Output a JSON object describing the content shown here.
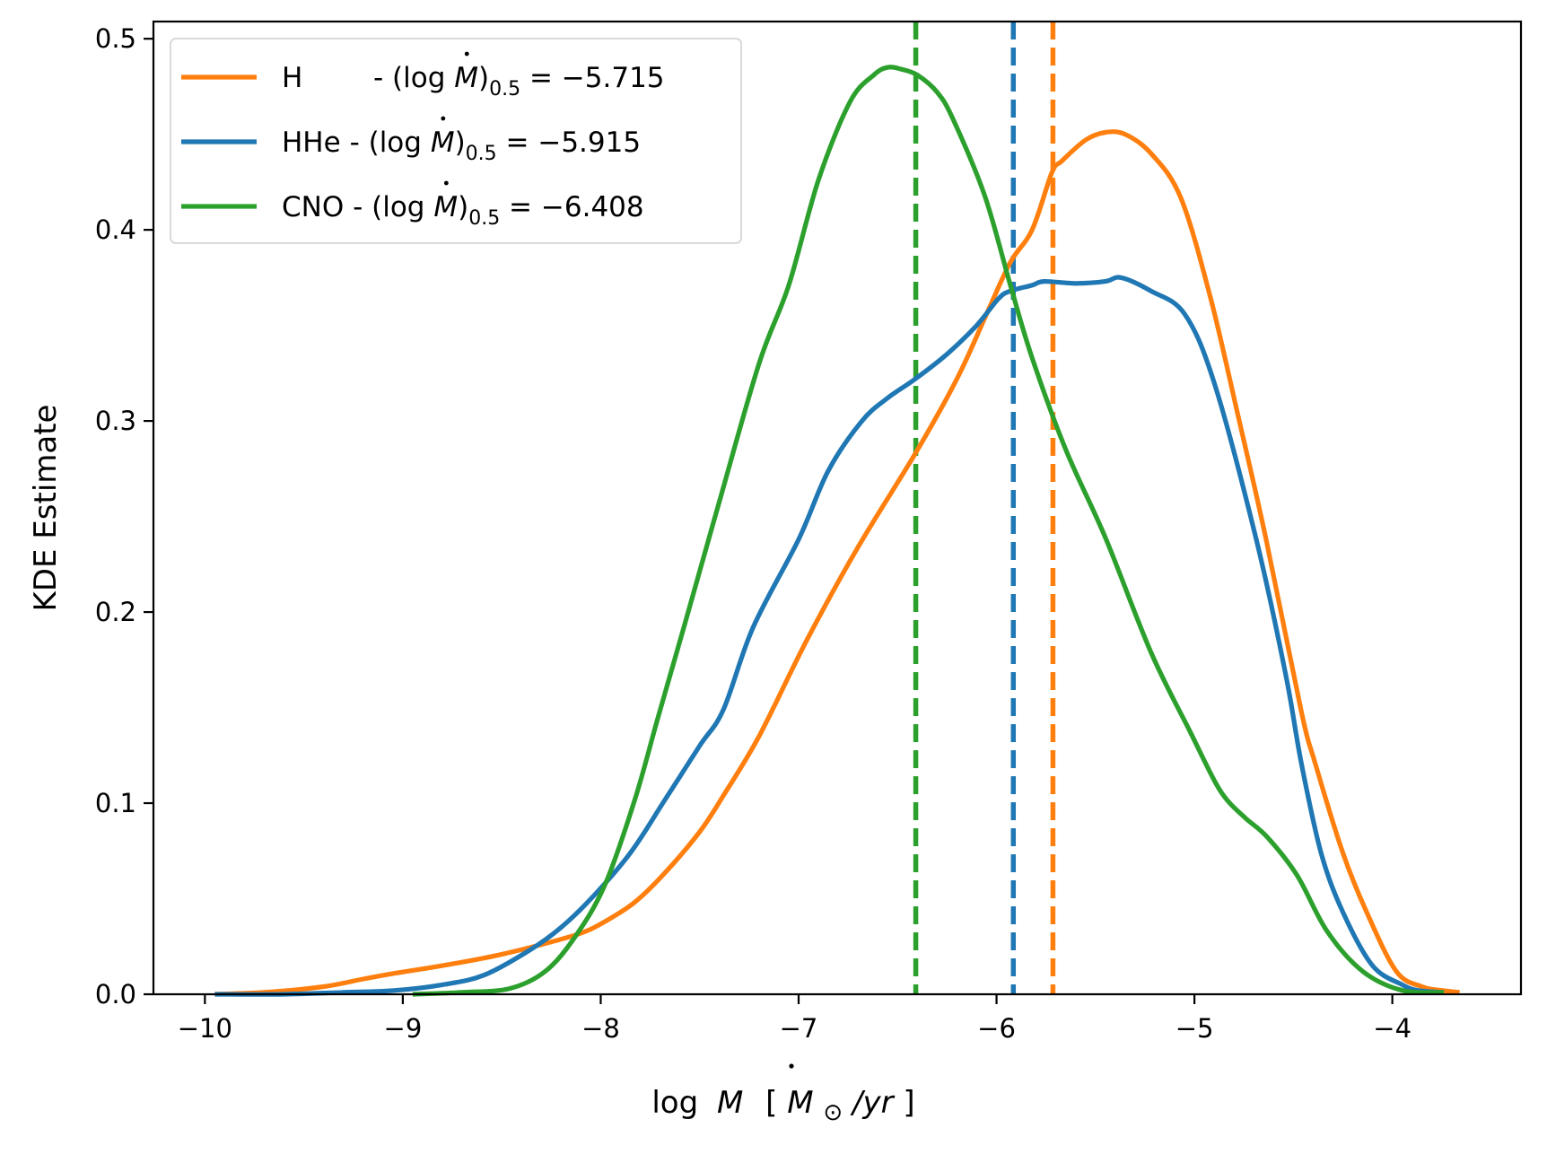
{
  "chart_data": {
    "type": "line",
    "title": "",
    "xlabel": "log Ṁ [M☉/yr]",
    "xlabel_parts": {
      "prefix": "log",
      "var": "M",
      "bracket_open": "[",
      "unit_var": "M",
      "unit_sub": "⊙",
      "unit_rest": "/yr",
      "bracket_close": "]"
    },
    "ylabel": "KDE Estimate",
    "xlim": [
      -10.26,
      -3.35
    ],
    "ylim": [
      0.0,
      0.509
    ],
    "xticks": [
      -10,
      -9,
      -8,
      -7,
      -6,
      -5,
      -4
    ],
    "xtick_labels": [
      "−10",
      "−9",
      "−8",
      "−7",
      "−6",
      "−5",
      "−4"
    ],
    "yticks": [
      0.0,
      0.1,
      0.2,
      0.3,
      0.4,
      0.5
    ],
    "ytick_labels": [
      "0.0",
      "0.1",
      "0.2",
      "0.3",
      "0.4",
      "0.5"
    ],
    "grid": false,
    "legend_position": "top-left",
    "series": [
      {
        "name": "H",
        "color": "#ff7f0e",
        "legend": {
          "name": "H",
          "spacer": "      ",
          "median_label": "−5.715"
        },
        "median": -5.715,
        "x": [
          -9.95,
          -9.7,
          -9.4,
          -9.2,
          -9.04,
          -8.8,
          -8.54,
          -8.3,
          -8.1,
          -7.98,
          -7.83,
          -7.68,
          -7.5,
          -7.38,
          -7.2,
          -6.96,
          -6.7,
          -6.41,
          -6.2,
          -6.05,
          -5.93,
          -5.82,
          -5.72,
          -5.67,
          -5.55,
          -5.45,
          -5.35,
          -5.22,
          -5.07,
          -4.92,
          -4.78,
          -4.64,
          -4.46,
          -4.39,
          -4.25,
          -4.13,
          -3.98,
          -3.85,
          -3.75,
          -3.66
        ],
        "y": [
          0.0,
          0.001,
          0.004,
          0.008,
          0.011,
          0.015,
          0.02,
          0.026,
          0.032,
          0.038,
          0.048,
          0.063,
          0.085,
          0.104,
          0.135,
          0.185,
          0.234,
          0.283,
          0.322,
          0.356,
          0.383,
          0.4,
          0.43,
          0.436,
          0.447,
          0.451,
          0.45,
          0.44,
          0.417,
          0.365,
          0.303,
          0.239,
          0.148,
          0.121,
          0.074,
          0.043,
          0.012,
          0.004,
          0.002,
          0.001
        ]
      },
      {
        "name": "HHe",
        "color": "#1f77b4",
        "legend": {
          "name": "HHe",
          "spacer": "",
          "median_label": "−5.915"
        },
        "median": -5.915,
        "x": [
          -9.95,
          -9.6,
          -9.3,
          -9.04,
          -8.8,
          -8.59,
          -8.36,
          -8.2,
          -8.04,
          -7.85,
          -7.68,
          -7.5,
          -7.38,
          -7.23,
          -7.0,
          -6.85,
          -6.68,
          -6.55,
          -6.41,
          -6.25,
          -6.1,
          -5.99,
          -5.93,
          -5.82,
          -5.76,
          -5.6,
          -5.45,
          -5.37,
          -5.22,
          -5.05,
          -4.9,
          -4.69,
          -4.54,
          -4.46,
          -4.36,
          -4.25,
          -4.1,
          -3.95,
          -3.87,
          -3.74
        ],
        "y": [
          0.0,
          0.0,
          0.001,
          0.002,
          0.005,
          0.01,
          0.023,
          0.035,
          0.051,
          0.074,
          0.101,
          0.13,
          0.149,
          0.192,
          0.238,
          0.274,
          0.3,
          0.312,
          0.322,
          0.335,
          0.35,
          0.364,
          0.368,
          0.371,
          0.373,
          0.372,
          0.373,
          0.375,
          0.368,
          0.356,
          0.32,
          0.239,
          0.168,
          0.121,
          0.074,
          0.043,
          0.015,
          0.005,
          0.002,
          0.001
        ]
      },
      {
        "name": "CNO",
        "color": "#2ca02c",
        "legend": {
          "name": "CNO",
          "spacer": "",
          "median_label": "−6.408"
        },
        "median": -6.408,
        "x": [
          -8.95,
          -8.7,
          -8.46,
          -8.28,
          -8.13,
          -7.98,
          -7.83,
          -7.71,
          -7.58,
          -7.4,
          -7.2,
          -7.05,
          -6.9,
          -6.74,
          -6.62,
          -6.55,
          -6.48,
          -6.4,
          -6.3,
          -6.22,
          -6.06,
          -5.93,
          -5.82,
          -5.65,
          -5.45,
          -5.22,
          -5.02,
          -4.9,
          -4.83,
          -4.74,
          -4.63,
          -4.48,
          -4.33,
          -4.15,
          -3.95,
          -3.74
        ],
        "y": [
          0.0,
          0.001,
          0.003,
          0.012,
          0.03,
          0.057,
          0.101,
          0.145,
          0.192,
          0.258,
          0.33,
          0.371,
          0.426,
          0.467,
          0.481,
          0.485,
          0.484,
          0.481,
          0.472,
          0.458,
          0.418,
          0.371,
          0.333,
          0.285,
          0.239,
          0.179,
          0.137,
          0.112,
          0.101,
          0.092,
          0.082,
          0.062,
          0.033,
          0.012,
          0.002,
          0.001
        ]
      }
    ],
    "vertical_lines": [
      {
        "series": "CNO",
        "x": -6.408,
        "color": "#2ca02c",
        "style": "dashed"
      },
      {
        "series": "HHe",
        "x": -5.915,
        "color": "#1f77b4",
        "style": "dashed"
      },
      {
        "series": "H",
        "x": -5.715,
        "color": "#ff7f0e",
        "style": "dashed"
      }
    ],
    "legend_expr": {
      "open": "- (log",
      "var": "M",
      "close": ")",
      "sub": "0.5",
      "eq": "="
    }
  }
}
